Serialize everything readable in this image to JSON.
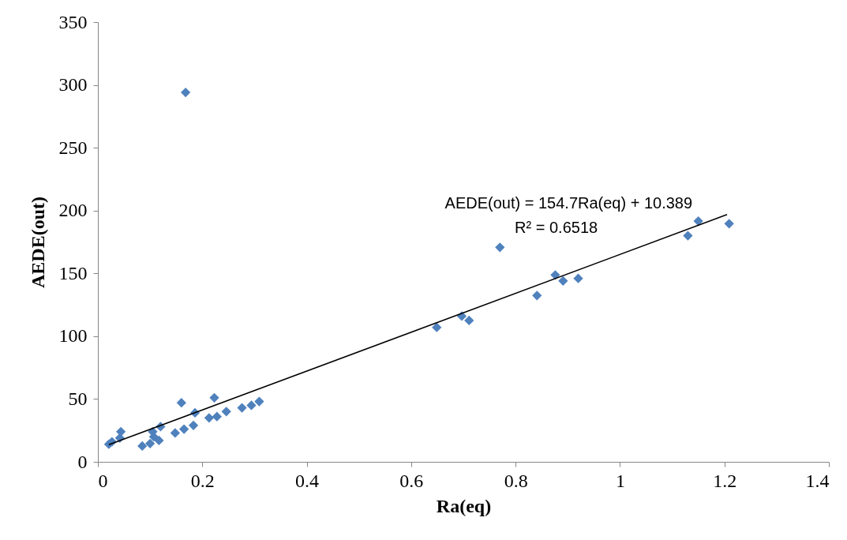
{
  "chart_data": {
    "type": "scatter",
    "xlabel": "Ra(eq)",
    "ylabel": "AEDE(out)",
    "xlim": [
      0,
      1.4
    ],
    "xticks": [
      0,
      0.2,
      0.4,
      0.6,
      0.8,
      1,
      1.2,
      1.4
    ],
    "ylim": [
      0,
      350
    ],
    "yticks": [
      0,
      50,
      100,
      150,
      200,
      250,
      300,
      350
    ],
    "grid": false,
    "annotations": [
      "AEDE(out) = 154.7Ra(eq) + 10.389",
      "R² = 0.6518"
    ],
    "series": [
      {
        "color": "#4f81bd",
        "marker": "diamond",
        "x": [
          0.021,
          0.027,
          0.042,
          0.044,
          0.085,
          0.1,
          0.105,
          0.107,
          0.117,
          0.12,
          0.148,
          0.16,
          0.165,
          0.168,
          0.183,
          0.186,
          0.213,
          0.223,
          0.228,
          0.246,
          0.276,
          0.294,
          0.309,
          0.649,
          0.697,
          0.711,
          0.77,
          0.841,
          0.876,
          0.891,
          0.92,
          1.13,
          1.15,
          1.209
        ],
        "values": [
          14,
          16,
          19,
          24,
          12.6,
          14.6,
          24,
          20,
          17,
          28,
          23,
          47,
          26,
          294,
          29,
          39,
          35,
          51,
          36,
          40,
          43,
          45,
          48,
          107,
          116,
          112.5,
          170.7,
          132.4,
          148.7,
          144,
          146,
          180,
          191.6,
          189.6
        ]
      },
      {
        "type": "line",
        "color": "#000000",
        "line_style": "solid",
        "marker": "none",
        "x": [
          0.021,
          1.205
        ],
        "values": [
          13.6,
          196.8
        ]
      }
    ]
  }
}
